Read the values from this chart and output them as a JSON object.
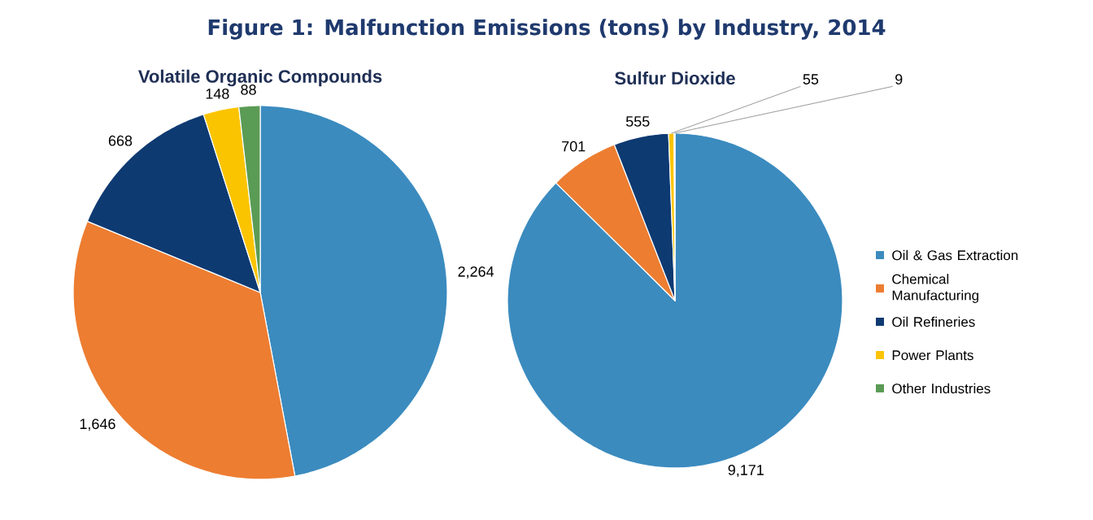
{
  "chart_data": [
    {
      "type": "pie",
      "title": "Figure 1: Malfunction Emissions (tons) by Industry, 2014",
      "subtitle": "Volatile Organic Compounds",
      "categories": [
        null,
        null,
        null,
        null,
        null
      ],
      "values": [
        2264,
        1646,
        668,
        148,
        88
      ],
      "colors": [
        "#3b8bbf",
        "#ed7d31",
        "#0e3a72",
        "#fbc400",
        "#5a9b55"
      ],
      "value_labels": [
        "2,264",
        "1,646",
        "668",
        "148",
        "88"
      ]
    },
    {
      "type": "pie",
      "title": "Sulfur Dioxide",
      "categories": [
        "Oil & Gas Extraction",
        "Chemical Manufacturing",
        "Oil Refineries",
        "Power Plants",
        "Other Industries"
      ],
      "values": [
        9171,
        701,
        555,
        55,
        9
      ],
      "colors": [
        "#3b8bbf",
        "#ed7d31",
        "#0e3a72",
        "#fbc400",
        "#5a9b55"
      ],
      "value_labels": [
        "9,171",
        "701",
        "555",
        "55",
        "9"
      ],
      "legend": "right"
    }
  ]
}
